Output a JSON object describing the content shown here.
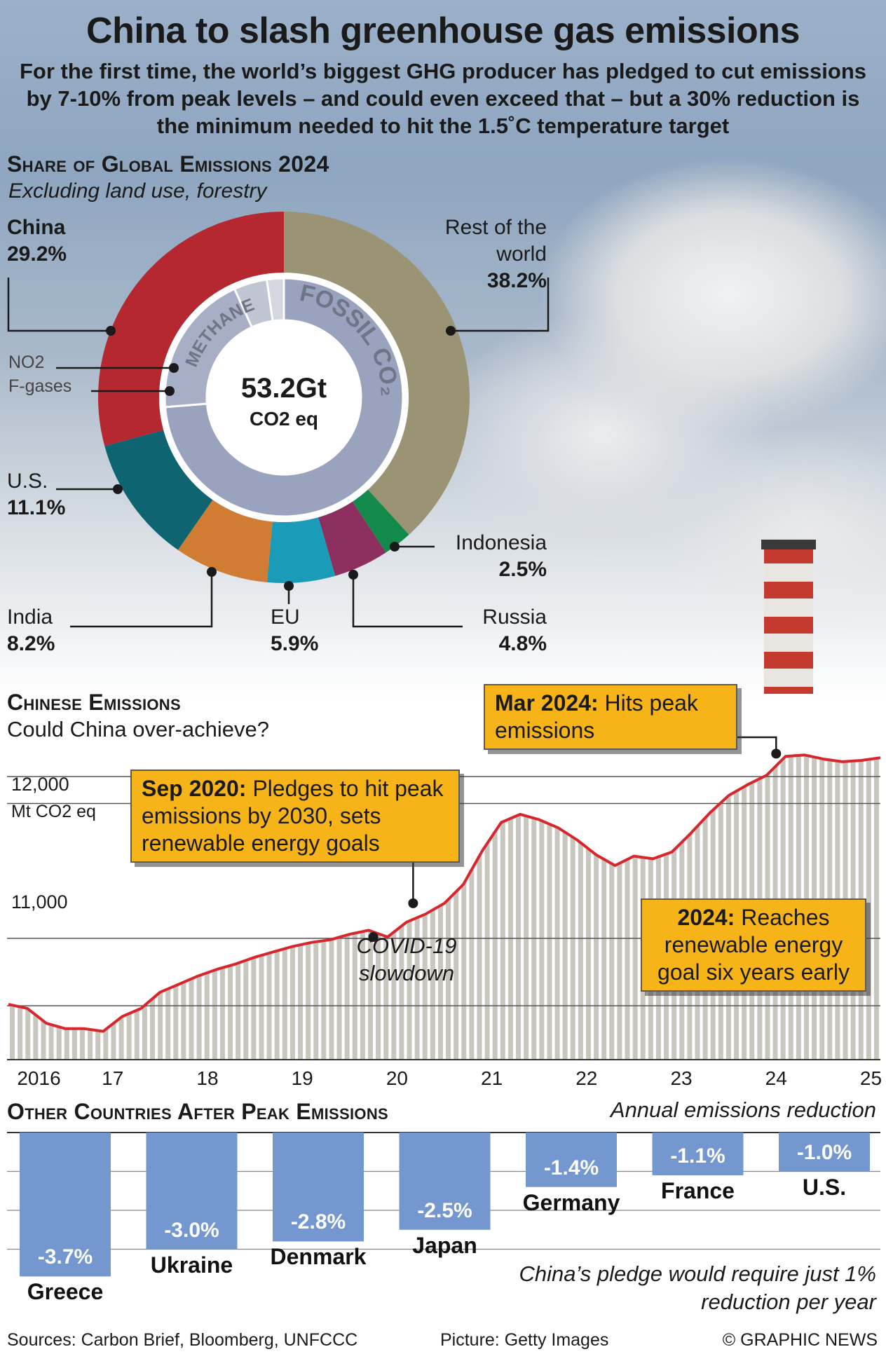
{
  "header": {
    "title": "China to slash greenhouse gas emissions",
    "subtitle": "For the first time, the world’s biggest GHG producer has pledged to cut emissions by 7-10% from peak levels – and could even exceed that – but a 30% reduction is the minimum needed to hit the 1.5˚C temperature target"
  },
  "colors": {
    "china": "#b5282f",
    "rest_of_world": "#9a9474",
    "us": "#0e6470",
    "india": "#d07d33",
    "eu": "#1a9bb8",
    "russia": "#8d2f5e",
    "indonesia": "#138a4c",
    "gas_ring": "#9aa3bd",
    "line": "#d7262c",
    "area_stripe": "#c9c7bd",
    "callout": "#f6b418",
    "bar": "#7497cf"
  },
  "chart_data": [
    {
      "type": "pie",
      "title": "Share of Global Emissions 2024",
      "subtitle": "Excluding land use, forestry",
      "center_value": "53.2Gt",
      "center_unit": "CO2 eq",
      "categories": [
        "China",
        "Rest of the world",
        "Indonesia",
        "Russia",
        "EU",
        "India",
        "U.S."
      ],
      "values": [
        29.2,
        38.2,
        2.5,
        4.8,
        5.9,
        8.2,
        11.1
      ],
      "value_labels": [
        "29.2%",
        "38.2%",
        "2.5%",
        "4.8%",
        "5.9%",
        "8.2%",
        "11.1%"
      ],
      "inner_ring": {
        "categories": [
          "Fossil CO2",
          "Methane",
          "NO2",
          "F-gases"
        ],
        "labels": [
          "FOSSIL CO",
          "METHANE",
          "NO2",
          "F-gases"
        ],
        "values": [
          73.7,
          19.5,
          4.5,
          2.3
        ]
      }
    },
    {
      "type": "area",
      "title": "Chinese Emissions",
      "subtitle": "Could China over-achieve?",
      "ylabel": "Mt CO2 eq",
      "y_ticks": [
        11000,
        12000
      ],
      "y_tick_labels": [
        "11,000",
        "12,000"
      ],
      "ylim": [
        10100,
        12450
      ],
      "x_tick_labels": [
        "2016",
        "17",
        "18",
        "19",
        "20",
        "21",
        "22",
        "23",
        "24",
        "25"
      ],
      "x_ticks": [
        2016,
        2017,
        2018,
        2019,
        2020,
        2021,
        2022,
        2023,
        2024,
        2025
      ],
      "xlim": [
        2015.9,
        2025.1
      ],
      "x": [
        2015.9,
        2016.1,
        2016.3,
        2016.5,
        2016.7,
        2016.9,
        2017.1,
        2017.3,
        2017.5,
        2017.7,
        2017.9,
        2018.1,
        2018.3,
        2018.5,
        2018.7,
        2018.9,
        2019.1,
        2019.3,
        2019.5,
        2019.7,
        2019.9,
        2020.1,
        2020.3,
        2020.5,
        2020.7,
        2020.9,
        2021.1,
        2021.3,
        2021.5,
        2021.7,
        2021.9,
        2022.1,
        2022.3,
        2022.5,
        2022.7,
        2022.9,
        2023.1,
        2023.3,
        2023.5,
        2023.7,
        2023.9,
        2024.1,
        2024.3,
        2024.5,
        2024.7,
        2024.9,
        2025.1
      ],
      "series": [
        {
          "values": [
            10510,
            10480,
            10370,
            10330,
            10330,
            10310,
            10420,
            10480,
            10600,
            10660,
            10720,
            10770,
            10810,
            10860,
            10900,
            10940,
            10970,
            10990,
            11030,
            11060,
            11010,
            11120,
            11180,
            11260,
            11400,
            11650,
            11860,
            11920,
            11880,
            11820,
            11730,
            11620,
            11540,
            11610,
            11590,
            11640,
            11780,
            11930,
            12060,
            12140,
            12210,
            12350,
            12360,
            12330,
            12310,
            12320,
            12340
          ]
        }
      ],
      "annotations": [
        {
          "label": "Sep 2020:",
          "text": "Pledges to hit peak emissions by 2030, sets renewable energy goals",
          "x": 2020.17,
          "y": 11260
        },
        {
          "label": "Mar 2024:",
          "text": "Hits peak emissions",
          "x": 2024.0,
          "y": 12370
        },
        {
          "label": "2024:",
          "text": "Reaches renewable energy goal six years early"
        },
        {
          "text": "COVID-19 slowdown",
          "x": 2019.75,
          "y": 11010
        }
      ]
    },
    {
      "type": "bar",
      "title": "Other Countries After Peak Emissions",
      "ylabel": "Annual emissions reduction",
      "categories": [
        "Greece",
        "Ukraine",
        "Denmark",
        "Japan",
        "Germany",
        "France",
        "U.S."
      ],
      "values": [
        -3.7,
        -3.0,
        -2.8,
        -2.5,
        -1.4,
        -1.1,
        -1.0
      ],
      "value_labels": [
        "-3.7%",
        "-3.0%",
        "-2.8%",
        "-2.5%",
        "-1.4%",
        "-1.1%",
        "-1.0%"
      ],
      "ylim": [
        -4.0,
        0
      ],
      "note": "China’s pledge would require just 1% reduction per year"
    }
  ],
  "footer": {
    "sources": "Sources: Carbon Brief, Bloomberg, UNFCCC",
    "picture": "Picture: Getty Images",
    "credit": "© GRAPHIC NEWS"
  }
}
